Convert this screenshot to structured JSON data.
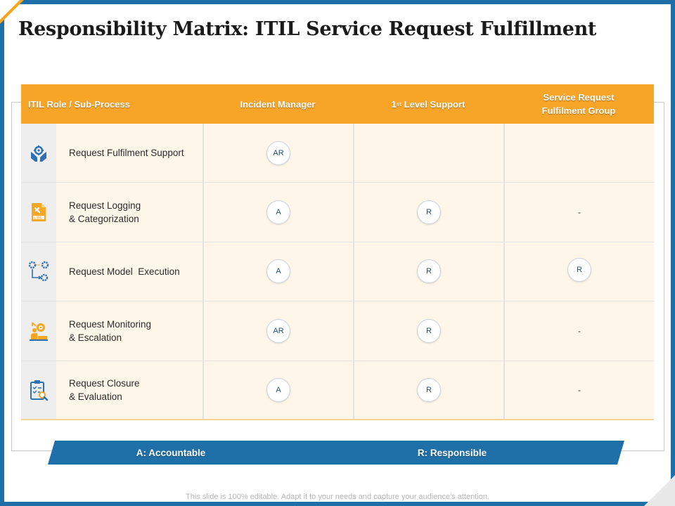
{
  "slide": {
    "title": "Responsibility Matrix: ITIL Service Request Fulfillment",
    "footer": "This slide is 100% editable. Adapt it to your needs and capture your audience's attention.",
    "colors": {
      "frame": "#1f6fa8",
      "header": "#f7a529",
      "row_bg": "#fff6ea",
      "icon_blue": "#2f6fb3",
      "icon_orange": "#f5a623"
    }
  },
  "table": {
    "headers": {
      "role": "ITIL Role / Sub-Process",
      "incident_manager": "Incident Manager",
      "level1_prefix": "1",
      "level1_sup": "st",
      "level1_suffix": " Level Support",
      "service_group": "Service Request\nFulfilment Group"
    },
    "rows": [
      {
        "icon": "hands-gear-icon",
        "label": "Request Fulfilment Support",
        "incident_manager": "AR",
        "level1": "",
        "service_group": ""
      },
      {
        "icon": "log-file-icon",
        "label": "Request Logging\n& Categorization",
        "incident_manager": "A",
        "level1": "R",
        "service_group": "-"
      },
      {
        "icon": "gears-flow-icon",
        "label": "Request Model  Execution",
        "incident_manager": "A",
        "level1": "R",
        "service_group": "R"
      },
      {
        "icon": "monitoring-person-icon",
        "label": "Request Monitoring\n& Escalation",
        "incident_manager": "AR",
        "level1": "R",
        "service_group": "-"
      },
      {
        "icon": "clipboard-check-icon",
        "label": "Request Closure\n & Evaluation",
        "incident_manager": "A",
        "level1": "R",
        "service_group": "-"
      }
    ]
  },
  "legend": {
    "accountable": "A: Accountable",
    "responsible": "R: Responsible"
  }
}
